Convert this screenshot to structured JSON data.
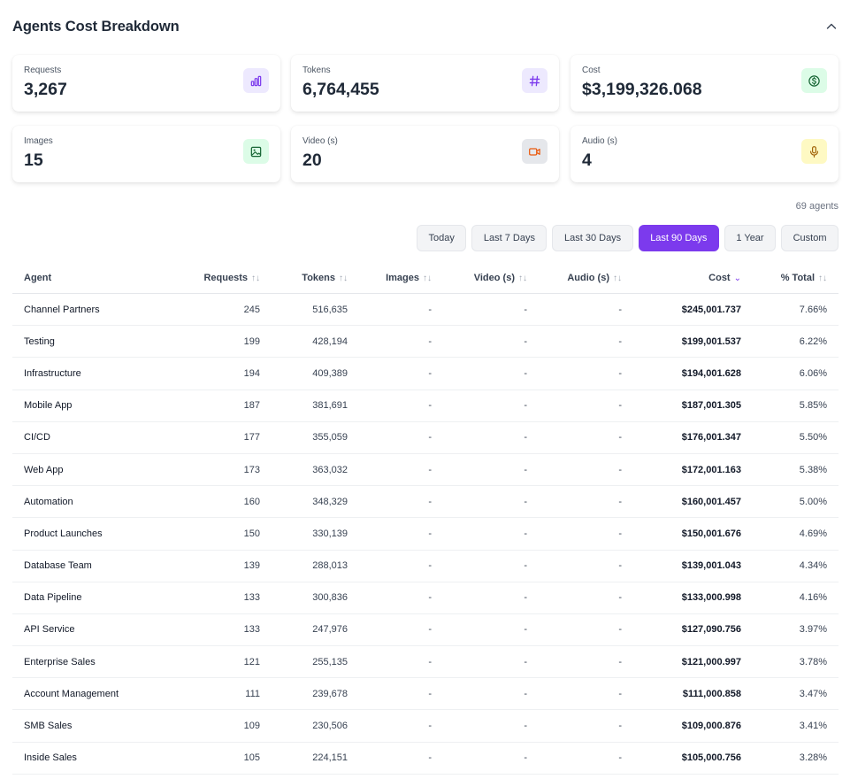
{
  "header": {
    "title": "Agents Cost Breakdown"
  },
  "cards": [
    {
      "label": "Requests",
      "value": "3,267",
      "icon": "bar-chart-icon",
      "bg": "#ede9fe",
      "fg": "#7c3aed"
    },
    {
      "label": "Tokens",
      "value": "6,764,455",
      "icon": "hash-icon",
      "bg": "#ede9fe",
      "fg": "#7c3aed"
    },
    {
      "label": "Cost",
      "value": "$3,199,326.068",
      "icon": "dollar-icon",
      "bg": "#dcfce7",
      "fg": "#16a34a"
    },
    {
      "label": "Images",
      "value": "15",
      "icon": "image-icon",
      "bg": "#dcfce7",
      "fg": "#16a34a"
    },
    {
      "label": "Video (s)",
      "value": "20",
      "icon": "video-icon",
      "bg": "#e5e7eb",
      "fg": "#ea580c"
    },
    {
      "label": "Audio (s)",
      "value": "4",
      "icon": "mic-icon",
      "bg": "#fef9c3",
      "fg": "#ca8a04"
    }
  ],
  "agents_count": "69 agents",
  "ranges": [
    "Today",
    "Last 7 Days",
    "Last 30 Days",
    "Last 90 Days",
    "1 Year",
    "Custom"
  ],
  "active_range": "Last 90 Days",
  "table": {
    "columns": [
      "Agent",
      "Requests",
      "Tokens",
      "Images",
      "Video (s)",
      "Audio (s)",
      "Cost",
      "% Total"
    ],
    "sort_icons": {
      "default": "↑↓",
      "active": "⌄"
    },
    "rows": [
      [
        "Channel Partners",
        "245",
        "516,635",
        "-",
        "-",
        "-",
        "$245,001.737",
        "7.66%"
      ],
      [
        "Testing",
        "199",
        "428,194",
        "-",
        "-",
        "-",
        "$199,001.537",
        "6.22%"
      ],
      [
        "Infrastructure",
        "194",
        "409,389",
        "-",
        "-",
        "-",
        "$194,001.628",
        "6.06%"
      ],
      [
        "Mobile App",
        "187",
        "381,691",
        "-",
        "-",
        "-",
        "$187,001.305",
        "5.85%"
      ],
      [
        "CI/CD",
        "177",
        "355,059",
        "-",
        "-",
        "-",
        "$176,001.347",
        "5.50%"
      ],
      [
        "Web App",
        "173",
        "363,032",
        "-",
        "-",
        "-",
        "$172,001.163",
        "5.38%"
      ],
      [
        "Automation",
        "160",
        "348,329",
        "-",
        "-",
        "-",
        "$160,001.457",
        "5.00%"
      ],
      [
        "Product Launches",
        "150",
        "330,139",
        "-",
        "-",
        "-",
        "$150,001.676",
        "4.69%"
      ],
      [
        "Database Team",
        "139",
        "288,013",
        "-",
        "-",
        "-",
        "$139,001.043",
        "4.34%"
      ],
      [
        "Data Pipeline",
        "133",
        "300,836",
        "-",
        "-",
        "-",
        "$133,000.998",
        "4.16%"
      ],
      [
        "API Service",
        "133",
        "247,976",
        "-",
        "-",
        "-",
        "$127,090.756",
        "3.97%"
      ],
      [
        "Enterprise Sales",
        "121",
        "255,135",
        "-",
        "-",
        "-",
        "$121,000.997",
        "3.78%"
      ],
      [
        "Account Management",
        "111",
        "239,678",
        "-",
        "-",
        "-",
        "$111,000.858",
        "3.47%"
      ],
      [
        "SMB Sales",
        "109",
        "230,506",
        "-",
        "-",
        "-",
        "$109,000.876",
        "3.41%"
      ],
      [
        "Inside Sales",
        "105",
        "224,151",
        "-",
        "-",
        "-",
        "$105,000.756",
        "3.28%"
      ]
    ]
  }
}
